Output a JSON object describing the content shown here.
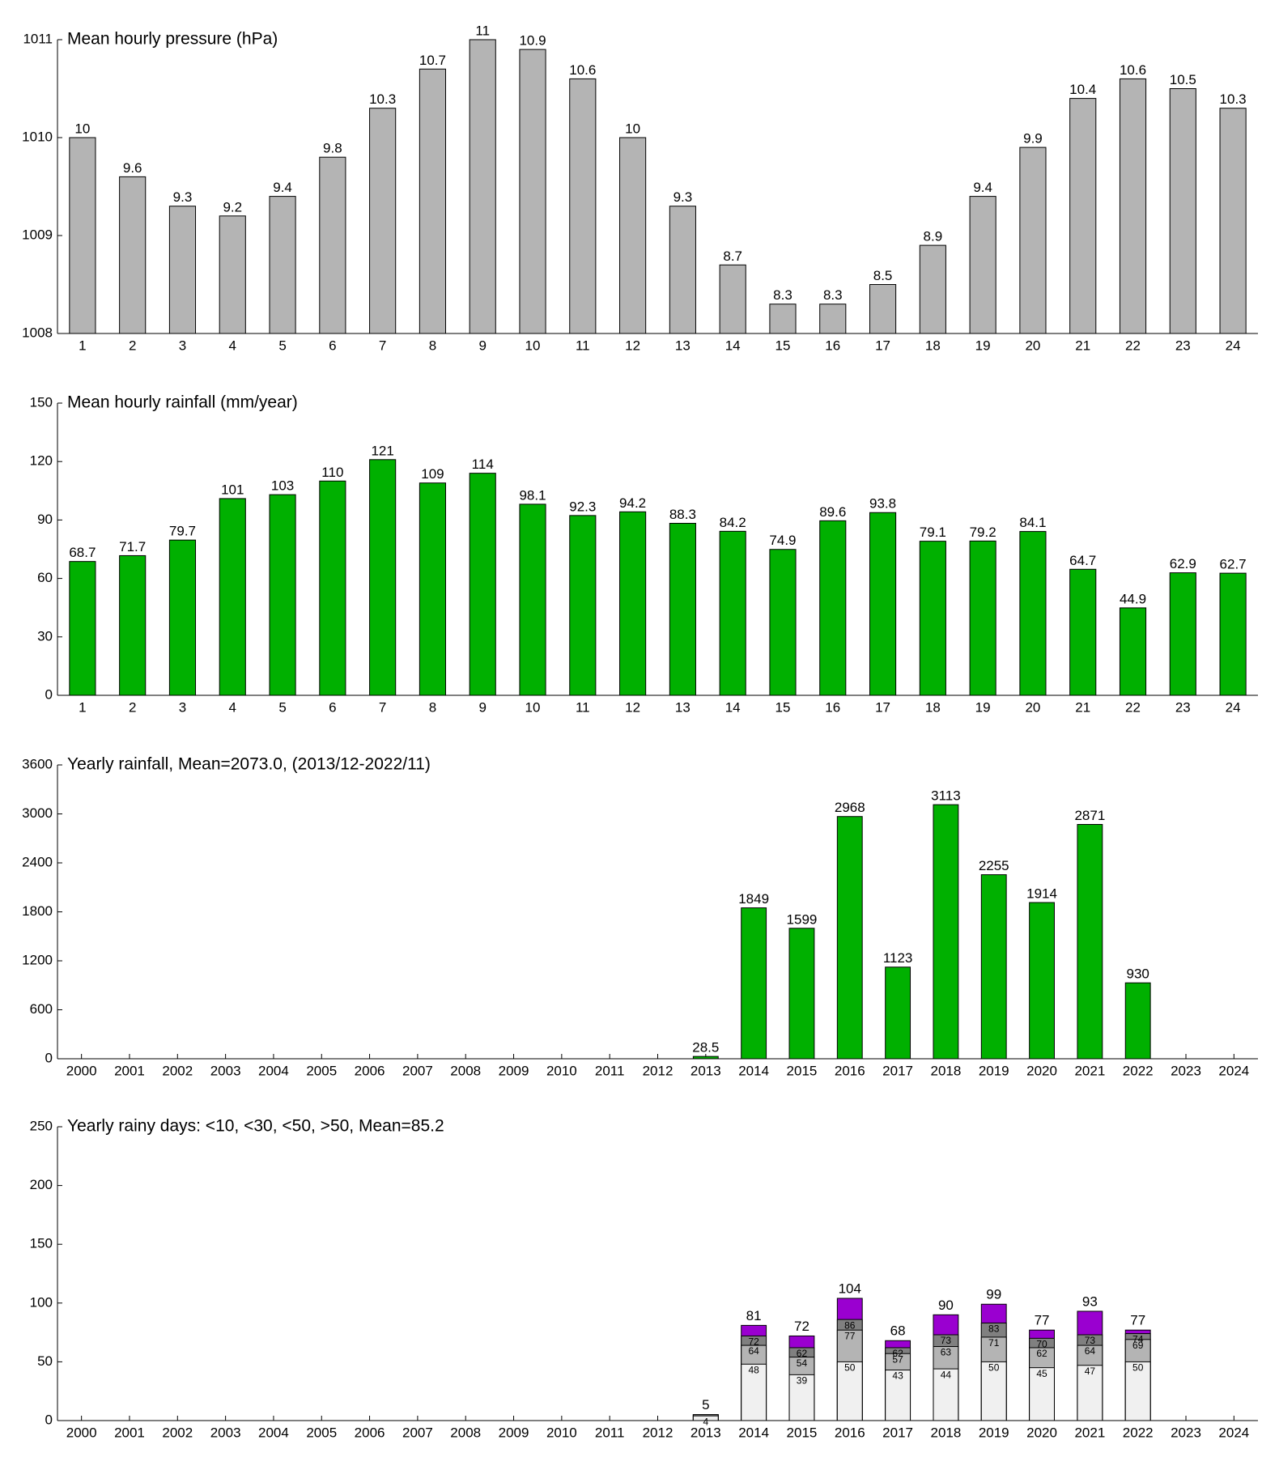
{
  "chart_data": [
    {
      "type": "bar",
      "title": "Mean hourly pressure (hPa)",
      "categories": [
        "1",
        "2",
        "3",
        "4",
        "5",
        "6",
        "7",
        "8",
        "9",
        "10",
        "11",
        "12",
        "13",
        "14",
        "15",
        "16",
        "17",
        "18",
        "19",
        "20",
        "21",
        "22",
        "23",
        "24"
      ],
      "values": [
        1010,
        1009.6,
        1009.3,
        1009.2,
        1009.4,
        1009.8,
        1010.3,
        1010.7,
        1011,
        1010.9,
        1010.6,
        1010,
        1009.3,
        1008.7,
        1008.3,
        1008.3,
        1008.5,
        1008.9,
        1009.4,
        1009.9,
        1010.4,
        1010.6,
        1010.5,
        1010.3
      ],
      "value_labels": [
        "10",
        "9.6",
        "9.3",
        "9.2",
        "9.4",
        "9.8",
        "10.3",
        "10.7",
        "11",
        "10.9",
        "10.6",
        "10",
        "9.3",
        "8.7",
        "8.3",
        "8.3",
        "8.5",
        "8.9",
        "9.4",
        "9.9",
        "10.4",
        "10.6",
        "10.5",
        "10.3"
      ],
      "color": "#b4b4b4",
      "ylim": [
        1008,
        1011
      ],
      "yticks": [
        1008,
        1009,
        1010,
        1011
      ]
    },
    {
      "type": "bar",
      "title": "Mean hourly rainfall (mm/year)",
      "categories": [
        "1",
        "2",
        "3",
        "4",
        "5",
        "6",
        "7",
        "8",
        "9",
        "10",
        "11",
        "12",
        "13",
        "14",
        "15",
        "16",
        "17",
        "18",
        "19",
        "20",
        "21",
        "22",
        "23",
        "24"
      ],
      "values": [
        68.7,
        71.7,
        79.7,
        101,
        103,
        110,
        121,
        109,
        114,
        98.1,
        92.3,
        94.2,
        88.3,
        84.2,
        74.9,
        89.6,
        93.8,
        79.1,
        79.2,
        84.1,
        64.7,
        44.9,
        62.9,
        62.7
      ],
      "color": "#00b000",
      "ylim": [
        0,
        150
      ],
      "yticks": [
        0,
        30,
        60,
        90,
        120,
        150
      ]
    },
    {
      "type": "bar",
      "title": "Yearly rainfall, Mean=2073.0, (2013/12-2022/11)",
      "categories": [
        "2000",
        "2001",
        "2002",
        "2003",
        "2004",
        "2005",
        "2006",
        "2007",
        "2008",
        "2009",
        "2010",
        "2011",
        "2012",
        "2013",
        "2014",
        "2015",
        "2016",
        "2017",
        "2018",
        "2019",
        "2020",
        "2021",
        "2022",
        "2023",
        "2024"
      ],
      "values": [
        null,
        null,
        null,
        null,
        null,
        null,
        null,
        null,
        null,
        null,
        null,
        null,
        null,
        28.5,
        1849,
        1599,
        2968,
        1123,
        3113,
        2255,
        1914,
        2871,
        930,
        null,
        null
      ],
      "color": "#00b000",
      "ylim": [
        0,
        3600
      ],
      "yticks": [
        0,
        600,
        1200,
        1800,
        2400,
        3000,
        3600
      ]
    },
    {
      "type": "overlap_bar",
      "title": "Yearly rainy days: <10, <30, <50, >50, Mean=85.2",
      "categories": [
        "2000",
        "2001",
        "2002",
        "2003",
        "2004",
        "2005",
        "2006",
        "2007",
        "2008",
        "2009",
        "2010",
        "2011",
        "2012",
        "2013",
        "2014",
        "2015",
        "2016",
        "2017",
        "2018",
        "2019",
        "2020",
        "2021",
        "2022",
        "2023",
        "2024"
      ],
      "series": [
        {
          "color": "#f0f0f0",
          "values": [
            null,
            null,
            null,
            null,
            null,
            null,
            null,
            null,
            null,
            null,
            null,
            null,
            null,
            4,
            48,
            39,
            50,
            43,
            44,
            50,
            45,
            47,
            50,
            null,
            null
          ]
        },
        {
          "color": "#b4b4b4",
          "values": [
            null,
            null,
            null,
            null,
            null,
            null,
            null,
            null,
            null,
            null,
            null,
            null,
            null,
            5,
            64,
            54,
            77,
            57,
            63,
            71,
            62,
            64,
            69,
            null,
            null
          ]
        },
        {
          "color": "#808080",
          "values": [
            null,
            null,
            null,
            null,
            null,
            null,
            null,
            null,
            null,
            null,
            null,
            null,
            null,
            5,
            72,
            62,
            86,
            62,
            73,
            83,
            70,
            73,
            74,
            null,
            null
          ]
        },
        {
          "color": "#9a00d0",
          "values": [
            null,
            null,
            null,
            null,
            null,
            null,
            null,
            null,
            null,
            null,
            null,
            null,
            null,
            5,
            81,
            72,
            104,
            68,
            90,
            99,
            77,
            93,
            77,
            null,
            null
          ]
        }
      ],
      "ylim": [
        0,
        250
      ],
      "yticks": [
        0,
        50,
        100,
        150,
        200,
        250
      ]
    }
  ]
}
